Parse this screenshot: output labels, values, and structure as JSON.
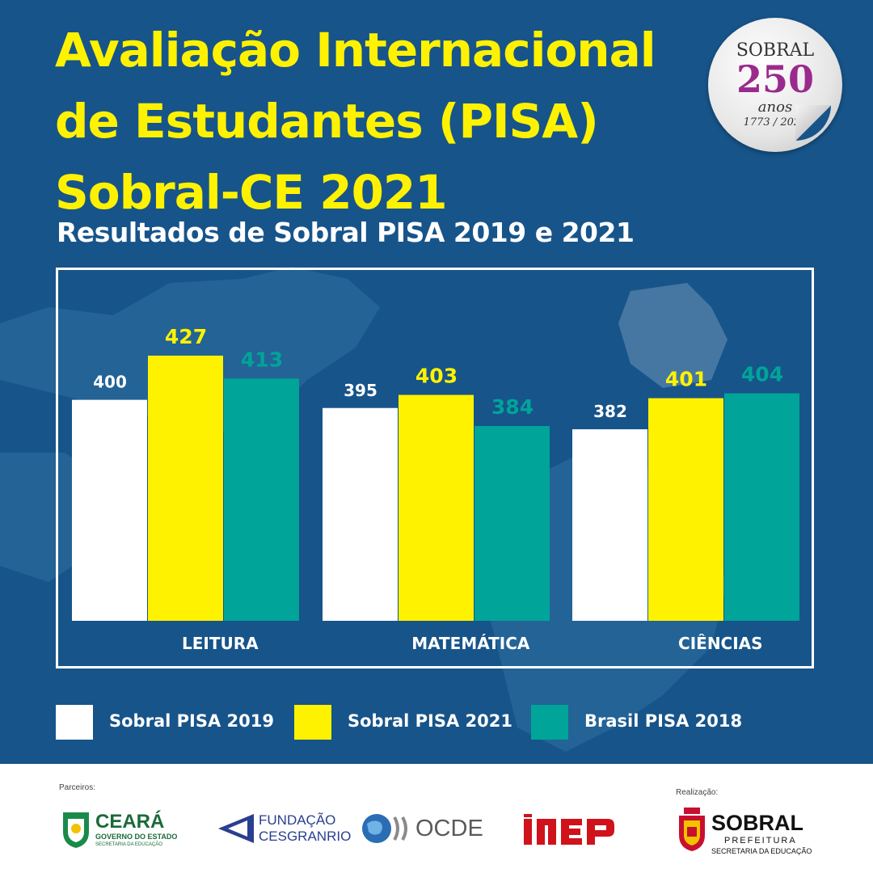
{
  "title": {
    "line1": "Avaliação Internacional",
    "line2": "de Estudantes (PISA)",
    "line3": "Sobral-CE 2021"
  },
  "subtitle": "Resultados de Sobral PISA 2019 e 2021",
  "seal": {
    "city": "SOBRAL",
    "number": "250",
    "word": "anos",
    "years": "1773 / 2023"
  },
  "colors": {
    "background": "#17548a",
    "sobral_2019": "#ffffff",
    "sobral_2021": "#fff200",
    "brasil_2018": "#00a499"
  },
  "chart_data": {
    "type": "bar",
    "title": "Resultados de Sobral PISA 2019 e 2021",
    "categories": [
      "LEITURA",
      "MATEMÁTICA",
      "CIÊNCIAS"
    ],
    "series": [
      {
        "name": "Sobral PISA 2019",
        "values": [
          400,
          395,
          382
        ],
        "color": "#ffffff"
      },
      {
        "name": "Sobral PISA 2021",
        "values": [
          427,
          403,
          401
        ],
        "color": "#fff200"
      },
      {
        "name": "Brasil PISA 2018",
        "values": [
          413,
          384,
          404
        ],
        "color": "#00a499"
      }
    ],
    "xlabel": "",
    "ylabel": "",
    "grid": false,
    "legend_position": "bottom"
  },
  "footer": {
    "partners_label": "Parceiros:",
    "realization_label": "Realização:",
    "ceara": {
      "name": "CEARÁ",
      "line1": "GOVERNO DO ESTADO",
      "line2": "SECRETARIA DA EDUCAÇÃO"
    },
    "cesgranrio": {
      "line1": "FUNDAÇÃO",
      "line2": "CESGRANRIO"
    },
    "ocde": {
      "name": "OCDE"
    },
    "inep": {
      "name": "INEP"
    },
    "sobral": {
      "name": "SOBRAL",
      "line1": "PREFEITURA",
      "line2": "SECRETARIA DA EDUCAÇÃO"
    }
  }
}
